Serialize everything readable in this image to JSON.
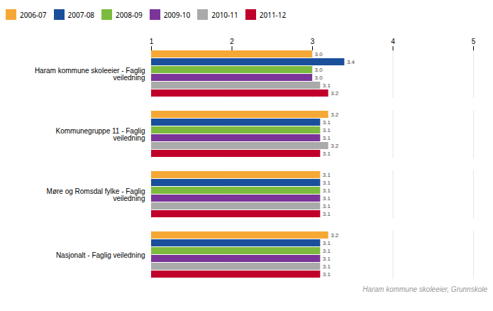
{
  "chart_data": {
    "type": "bar",
    "orientation": "horizontal",
    "categories": [
      "Haram kommune skoleeier - Faglig\nveiledning",
      "Kommunegruppe 11 - Faglig\nveiledning",
      "Møre og Romsdal fylke - Faglig\nveiledning",
      "Nasjonalt - Faglig veiledning"
    ],
    "series": [
      {
        "name": "2006-07",
        "color": "#F5A835",
        "values": [
          3.0,
          3.2,
          3.1,
          3.2
        ],
        "value_labels": [
          "3.0",
          "3.2",
          "3.1",
          "3.2"
        ]
      },
      {
        "name": "2007-08",
        "color": "#1A4F9C",
        "values": [
          3.4,
          3.1,
          3.1,
          3.1
        ],
        "value_labels": [
          "3.4",
          "3.1",
          "3.1",
          "3.1"
        ]
      },
      {
        "name": "2008-09",
        "color": "#7CBB3E",
        "values": [
          3.0,
          3.1,
          3.1,
          3.1
        ],
        "value_labels": [
          "3.0",
          "3.1",
          "3.1",
          "3.1"
        ]
      },
      {
        "name": "2009-10",
        "color": "#7B3599",
        "values": [
          3.0,
          3.1,
          3.1,
          3.1
        ],
        "value_labels": [
          "3.0",
          "3.1",
          "3.1",
          "3.1"
        ]
      },
      {
        "name": "2010-11",
        "color": "#AAAAAA",
        "values": [
          3.1,
          3.2,
          3.1,
          3.1
        ],
        "value_labels": [
          "3.1",
          "3.2",
          "3.1",
          "3.1"
        ]
      },
      {
        "name": "2011-12",
        "color": "#C0002A",
        "values": [
          3.2,
          3.1,
          3.1,
          3.1
        ],
        "value_labels": [
          "3.2",
          "3.1",
          "3.1",
          "3.1"
        ]
      }
    ],
    "xlim": [
      1,
      5
    ],
    "xticks": [
      1,
      2,
      3,
      4,
      5
    ],
    "grid": true,
    "legend": "top",
    "data_labels": true,
    "annotations": [
      "Haram kommune skoleeier, Grunnskole"
    ]
  }
}
